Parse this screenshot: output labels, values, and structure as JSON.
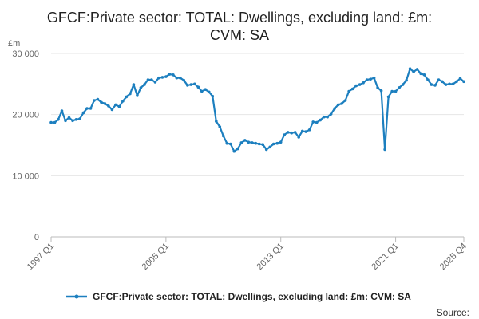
{
  "chart_data": {
    "type": "line",
    "title_lines": [
      "GFCF:Private sector: TOTAL: Dwellings, excluding land: £m:",
      "CVM: SA"
    ],
    "ylabel": "£m",
    "ylim": [
      0,
      30000
    ],
    "y_ticks": [
      0,
      10000,
      20000,
      30000
    ],
    "y_tick_labels": [
      "0",
      "10 000",
      "20 000",
      "30 000"
    ],
    "x_ticks": [
      "1997 Q1",
      "2005 Q1",
      "2013 Q1",
      "2021 Q1",
      "2025 Q4"
    ],
    "grid": "horizontal",
    "legend_position": "bottom",
    "source_label": "Source:",
    "color": "#1c7fbf",
    "series": [
      {
        "name": "GFCF:Private sector: TOTAL: Dwellings, excluding land: £m: CVM: SA",
        "x": [
          "1997 Q1",
          "1997 Q2",
          "1997 Q3",
          "1997 Q4",
          "1998 Q1",
          "1998 Q2",
          "1998 Q3",
          "1998 Q4",
          "1999 Q1",
          "1999 Q2",
          "1999 Q3",
          "1999 Q4",
          "2000 Q1",
          "2000 Q2",
          "2000 Q3",
          "2000 Q4",
          "2001 Q1",
          "2001 Q2",
          "2001 Q3",
          "2001 Q4",
          "2002 Q1",
          "2002 Q2",
          "2002 Q3",
          "2002 Q4",
          "2003 Q1",
          "2003 Q2",
          "2003 Q3",
          "2003 Q4",
          "2004 Q1",
          "2004 Q2",
          "2004 Q3",
          "2004 Q4",
          "2005 Q1",
          "2005 Q2",
          "2005 Q3",
          "2005 Q4",
          "2006 Q1",
          "2006 Q2",
          "2006 Q3",
          "2006 Q4",
          "2007 Q1",
          "2007 Q2",
          "2007 Q3",
          "2007 Q4",
          "2008 Q1",
          "2008 Q2",
          "2008 Q3",
          "2008 Q4",
          "2009 Q1",
          "2009 Q2",
          "2009 Q3",
          "2009 Q4",
          "2010 Q1",
          "2010 Q2",
          "2010 Q3",
          "2010 Q4",
          "2011 Q1",
          "2011 Q2",
          "2011 Q3",
          "2011 Q4",
          "2012 Q1",
          "2012 Q2",
          "2012 Q3",
          "2012 Q4",
          "2013 Q1",
          "2013 Q2",
          "2013 Q3",
          "2013 Q4",
          "2014 Q1",
          "2014 Q2",
          "2014 Q3",
          "2014 Q4",
          "2015 Q1",
          "2015 Q2",
          "2015 Q3",
          "2015 Q4",
          "2016 Q1",
          "2016 Q2",
          "2016 Q3",
          "2016 Q4",
          "2017 Q1",
          "2017 Q2",
          "2017 Q3",
          "2017 Q4",
          "2018 Q1",
          "2018 Q2",
          "2018 Q3",
          "2018 Q4",
          "2019 Q1",
          "2019 Q2",
          "2019 Q3",
          "2019 Q4",
          "2020 Q1",
          "2020 Q2",
          "2020 Q3",
          "2020 Q4",
          "2021 Q1",
          "2021 Q2",
          "2021 Q3",
          "2021 Q4",
          "2022 Q1",
          "2022 Q2",
          "2022 Q3",
          "2022 Q4",
          "2023 Q1",
          "2023 Q2",
          "2023 Q3",
          "2023 Q4",
          "2024 Q1",
          "2024 Q2",
          "2024 Q3",
          "2024 Q4",
          "2025 Q1",
          "2025 Q2",
          "2025 Q3",
          "2025 Q4"
        ],
        "values": [
          18700,
          18700,
          19200,
          20600,
          19000,
          19500,
          19000,
          19200,
          19300,
          20300,
          21000,
          21000,
          22300,
          22500,
          22000,
          21800,
          21400,
          20800,
          21600,
          21300,
          22200,
          22900,
          23400,
          24900,
          23100,
          24400,
          24900,
          25700,
          25700,
          25300,
          26000,
          26100,
          26200,
          26600,
          26500,
          26000,
          26000,
          25600,
          24800,
          24900,
          25000,
          24500,
          23800,
          24100,
          23700,
          23000,
          18900,
          18000,
          16500,
          15300,
          15200,
          14000,
          14400,
          15400,
          15800,
          15500,
          15400,
          15300,
          15200,
          15100,
          14300,
          14700,
          15200,
          15300,
          15500,
          16700,
          17100,
          17000,
          17100,
          16300,
          17300,
          17200,
          17500,
          18800,
          18700,
          19100,
          19600,
          19600,
          20100,
          21000,
          21600,
          21800,
          22300,
          23800,
          24200,
          24700,
          24900,
          25200,
          25700,
          25800,
          26000,
          24400,
          23900,
          14300,
          22900,
          23800,
          23800,
          24400,
          24900,
          25600,
          27500,
          27000,
          27400,
          26700,
          26500,
          25700,
          24900,
          24800,
          25700,
          25400,
          24900,
          25000,
          25000,
          25400,
          25900,
          25400
        ]
      }
    ]
  }
}
